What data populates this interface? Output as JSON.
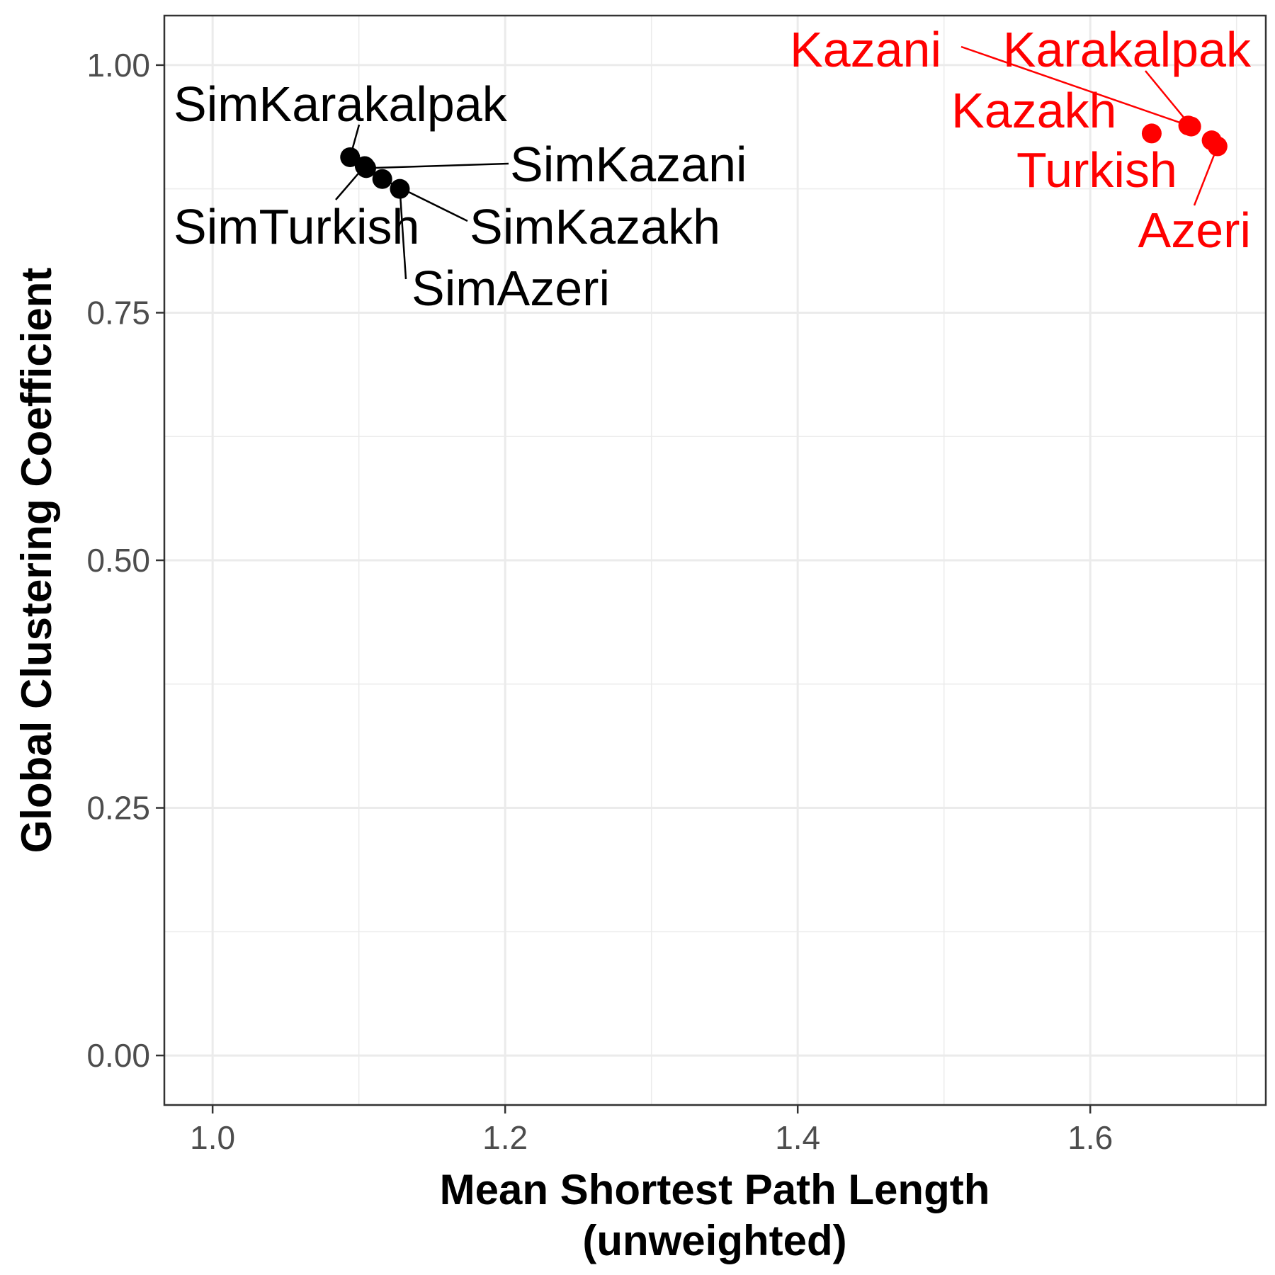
{
  "chart_data": {
    "type": "scatter",
    "title": "",
    "xlabel_lines": [
      "Mean Shortest Path Length",
      "(unweighted)"
    ],
    "ylabel": "Global Clustering Coefficient",
    "xlim": [
      0.967,
      1.72
    ],
    "ylim": [
      -0.05,
      1.05
    ],
    "x_ticks": [
      1.0,
      1.2,
      1.4,
      1.6
    ],
    "x_tick_labels": [
      "1.0",
      "1.2",
      "1.4",
      "1.6"
    ],
    "y_ticks": [
      0.0,
      0.25,
      0.5,
      0.75,
      1.0
    ],
    "y_tick_labels": [
      "0.00",
      "0.25",
      "0.50",
      "0.75",
      "1.00"
    ],
    "grid": true,
    "legend": "none",
    "colors": {
      "simulated": "#000000",
      "real": "#ff0000",
      "grid": "#ebebeb",
      "panel_border": "#333333"
    },
    "series": [
      {
        "color_key": "simulated",
        "points": [
          {
            "label": "SimKarakalpak",
            "x": 1.094,
            "y": 0.907
          },
          {
            "label": "SimTurkish",
            "x": 1.104,
            "y": 0.898
          },
          {
            "label": "SimKazani",
            "x": 1.105,
            "y": 0.896
          },
          {
            "label": "SimKazakh",
            "x": 1.116,
            "y": 0.885
          },
          {
            "label": "SimAzeri",
            "x": 1.128,
            "y": 0.875
          }
        ]
      },
      {
        "color_key": "real",
        "points": [
          {
            "label": "Kazakh",
            "x": 1.642,
            "y": 0.931
          },
          {
            "label": "Kazani",
            "x": 1.667,
            "y": 0.939
          },
          {
            "label": "Karakalpak",
            "x": 1.669,
            "y": 0.938
          },
          {
            "label": "Turkish",
            "x": 1.683,
            "y": 0.924
          },
          {
            "label": "Azeri",
            "x": 1.687,
            "y": 0.918
          }
        ]
      }
    ]
  }
}
